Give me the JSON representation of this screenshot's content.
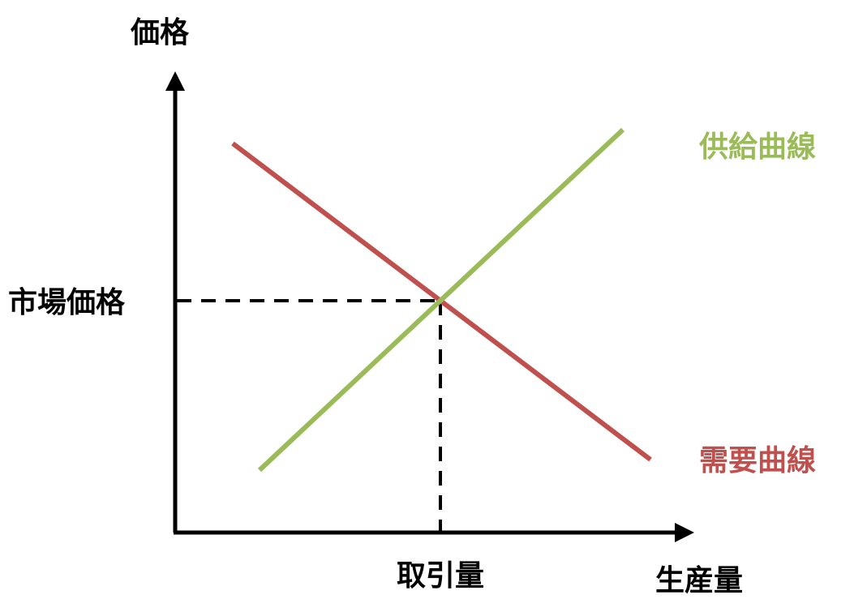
{
  "axes": {
    "y_label": "価格",
    "x_label": "生産量"
  },
  "equilibrium": {
    "price_label": "市場価格",
    "quantity_label": "取引量"
  },
  "curves": [
    {
      "label": "供給曲線"
    },
    {
      "label": "需要曲線"
    }
  ]
}
